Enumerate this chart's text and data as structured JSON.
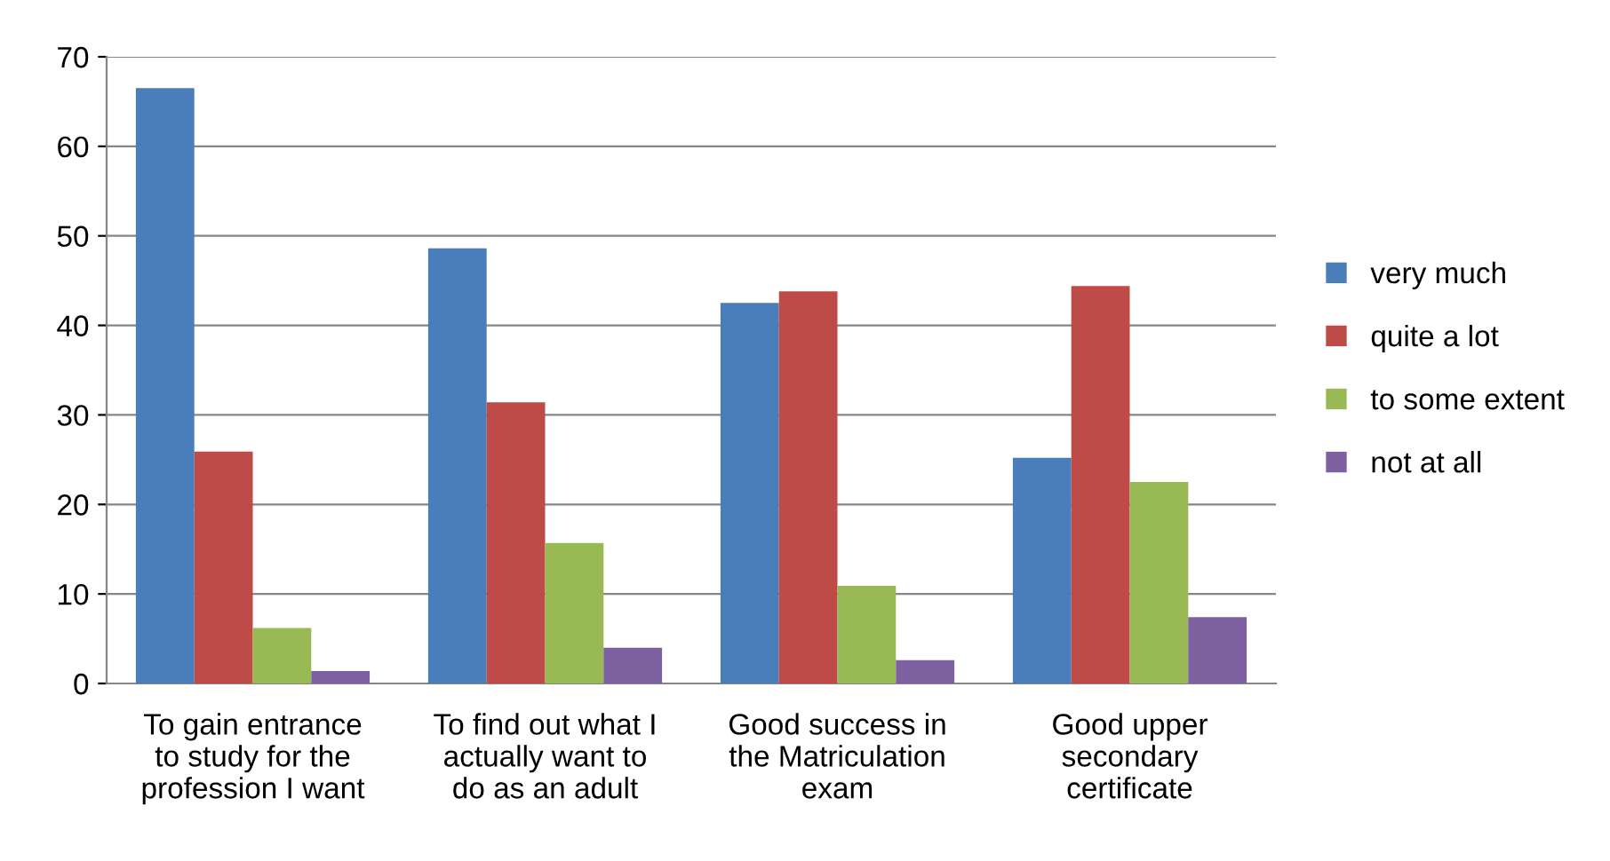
{
  "chart_data": {
    "type": "bar",
    "categories": [
      "To gain entrance\nto study for the\nprofession I want",
      "To find out what I\nactually want to\ndo as an adult",
      "Good success in\nthe Matriculation\nexam",
      "Good upper\nsecondary\ncertificate"
    ],
    "series": [
      {
        "name": "very much",
        "color": "#4a7ebb",
        "values": [
          66.5,
          48.6,
          42.5,
          25.2
        ]
      },
      {
        "name": "quite a lot",
        "color": "#be4b48",
        "values": [
          25.9,
          31.4,
          43.8,
          44.4
        ]
      },
      {
        "name": "to some extent",
        "color": "#98b954",
        "values": [
          6.2,
          15.7,
          10.9,
          22.5
        ]
      },
      {
        "name": "not at all",
        "color": "#7d60a0",
        "values": [
          1.4,
          4.0,
          2.6,
          7.4
        ]
      }
    ],
    "ylim": [
      0,
      70
    ],
    "yticks": [
      0,
      10,
      20,
      30,
      40,
      50,
      60,
      70
    ],
    "grid": "y",
    "legend": "right"
  }
}
